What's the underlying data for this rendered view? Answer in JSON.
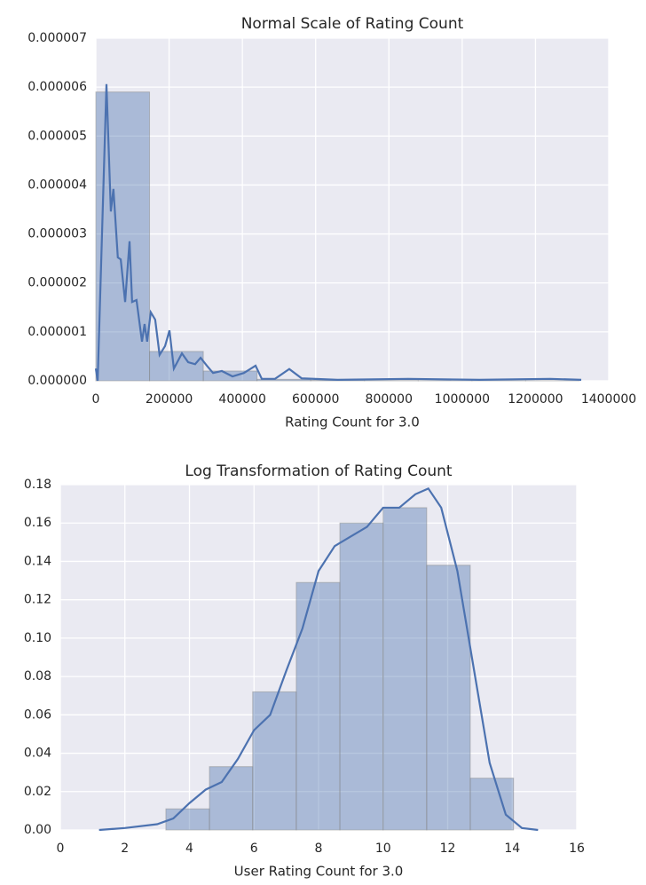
{
  "chart_data": [
    {
      "type": "histogram",
      "title": "Normal Scale of Rating Count",
      "xlabel": "Rating Count for 3.0",
      "color": "#4c72b0",
      "grid": true,
      "xlim": [
        0,
        1400000
      ],
      "xticks": [
        0,
        200000,
        400000,
        600000,
        800000,
        1000000,
        1200000,
        1400000
      ],
      "ylim": [
        0,
        7e-06
      ],
      "yticks": [
        {
          "value": 0,
          "label": "0.000000"
        },
        {
          "value": 1e-06,
          "label": "0.000001"
        },
        {
          "value": 2e-06,
          "label": "0.000002"
        },
        {
          "value": 3e-06,
          "label": "0.000003"
        },
        {
          "value": 4e-06,
          "label": "0.000004"
        },
        {
          "value": 5e-06,
          "label": "0.000005"
        },
        {
          "value": 6e-06,
          "label": "0.000006"
        },
        {
          "value": 7e-06,
          "label": "0.000007"
        }
      ],
      "bins": [
        0,
        146667,
        293333,
        440000,
        586667,
        733333,
        880000,
        1026667,
        1173333,
        1320000
      ],
      "counts": [
        5.9e-06,
        6e-07,
        2e-07,
        3e-08,
        1e-08,
        5e-09,
        3e-09,
        2e-09,
        2e-09
      ],
      "line": {
        "x": [
          0,
          5000,
          29000,
          41000,
          48000,
          60000,
          68000,
          80000,
          92000,
          99000,
          111000,
          126000,
          133000,
          140000,
          150000,
          162000,
          174000,
          189000,
          201000,
          213000,
          235000,
          252000,
          271000,
          286000,
          303000,
          320000,
          344000,
          373000,
          404000,
          436000,
          453000,
          489000,
          528000,
          562000,
          659000,
          853000,
          1047000,
          1240000,
          1325000
        ],
        "values": [
          2.5e-07,
          0,
          6.06e-06,
          3.46e-06,
          3.92e-06,
          2.52e-06,
          2.48e-06,
          1.61e-06,
          2.85e-06,
          1.61e-06,
          1.65e-06,
          8e-07,
          1.16e-06,
          8e-07,
          1.4e-06,
          1.25e-06,
          5.3e-07,
          7.1e-07,
          1.03e-06,
          2.5e-07,
          5.6e-07,
          3.8e-07,
          3.4e-07,
          4.7e-07,
          3.1e-07,
          1.6e-07,
          2e-07,
          9e-08,
          1.6e-07,
          3.1e-07,
          4e-08,
          4e-08,
          2.4e-07,
          5e-08,
          2e-08,
          4e-08,
          2e-08,
          4e-08,
          2e-08
        ]
      }
    },
    {
      "type": "histogram",
      "title": "Log Transformation of Rating Count",
      "xlabel": "User Rating Count for 3.0",
      "color": "#4c72b0",
      "grid": true,
      "xlim": [
        0,
        16
      ],
      "xticks": [
        0,
        2,
        4,
        6,
        8,
        10,
        12,
        14,
        16
      ],
      "ylim": [
        0,
        0.18
      ],
      "yticks": [
        {
          "value": 0,
          "label": "0.00"
        },
        {
          "value": 0.02,
          "label": "0.02"
        },
        {
          "value": 0.04,
          "label": "0.04"
        },
        {
          "value": 0.06,
          "label": "0.06"
        },
        {
          "value": 0.08,
          "label": "0.08"
        },
        {
          "value": 0.1,
          "label": "0.10"
        },
        {
          "value": 0.12,
          "label": "0.12"
        },
        {
          "value": 0.14,
          "label": "0.14"
        },
        {
          "value": 0.16,
          "label": "0.16"
        },
        {
          "value": 0.18,
          "label": "0.18"
        }
      ],
      "bins": [
        3.27,
        4.62,
        5.96,
        7.31,
        8.66,
        10.0,
        11.35,
        12.7,
        14.04
      ],
      "counts": [
        0.011,
        0.033,
        0.072,
        0.129,
        0.16,
        0.168,
        0.138,
        0.027
      ],
      "line": {
        "x": [
          1.2,
          2,
          3,
          3.5,
          4,
          4.5,
          5,
          5.5,
          6,
          6.5,
          7,
          7.5,
          8,
          8.5,
          9,
          9.5,
          10,
          10.5,
          11,
          11.4,
          11.8,
          12.3,
          12.8,
          13.3,
          13.8,
          14.3,
          14.8
        ],
        "values": [
          0,
          0.001,
          0.003,
          0.006,
          0.014,
          0.021,
          0.025,
          0.037,
          0.052,
          0.06,
          0.083,
          0.105,
          0.135,
          0.148,
          0.153,
          0.158,
          0.168,
          0.168,
          0.175,
          0.178,
          0.168,
          0.135,
          0.085,
          0.035,
          0.008,
          0.001,
          0
        ]
      }
    }
  ]
}
